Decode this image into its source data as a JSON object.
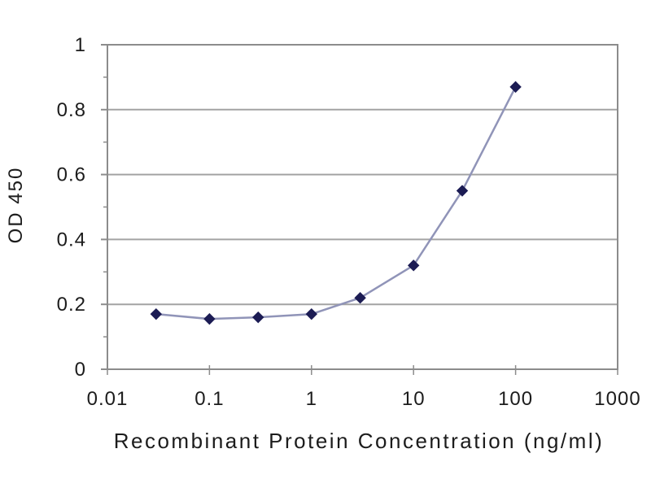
{
  "chart_data": {
    "type": "line",
    "xlabel": "Recombinant Protein Concentration (ng/ml)",
    "ylabel": "OD 450",
    "x_scale": "log",
    "y_scale": "linear",
    "x": [
      0.03,
      0.1,
      0.3,
      1,
      3,
      10,
      30,
      100
    ],
    "y": [
      0.17,
      0.155,
      0.16,
      0.17,
      0.22,
      0.32,
      0.55,
      0.87
    ],
    "x_tick_labels": [
      "0.01",
      "0.1",
      "1",
      "10",
      "100",
      "1000"
    ],
    "x_tick_values": [
      0.01,
      0.1,
      1,
      10,
      100,
      1000
    ],
    "y_tick_labels": [
      "0",
      "0.2",
      "0.4",
      "0.6",
      "0.8",
      "1"
    ],
    "y_tick_values": [
      0,
      0.2,
      0.4,
      0.6,
      0.8,
      1
    ],
    "y_minor_tick_step": 0.1,
    "xlim": [
      0.01,
      1000
    ],
    "ylim": [
      0,
      1
    ],
    "grid": "horizontal-major",
    "legend_visible": false,
    "marker_shape": "diamond",
    "colors": {
      "line": "#9094b8",
      "marker": "#1c1c54",
      "gridline": "#a3a3a3",
      "axis": "#8c8c8c",
      "text": "#1c1c1c",
      "background": "#ffffff"
    }
  }
}
